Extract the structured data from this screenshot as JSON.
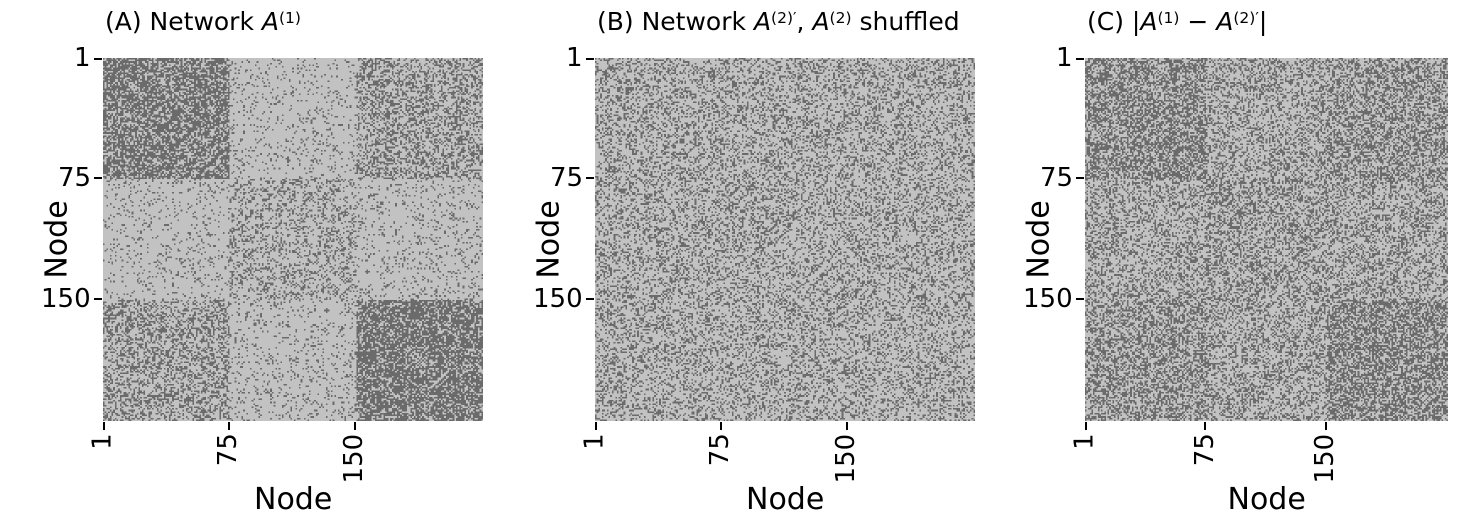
{
  "figure": {
    "background": "#ffffff",
    "text_color": "#000000",
    "description": "Three binary adjacency-matrix heatmaps rendered in gray scale"
  },
  "chart_data": [
    {
      "type": "heatmap",
      "panel": "A",
      "title": "(A) Network A^(1)",
      "title_segments": [
        {
          "t": "(A) Network ",
          "s": "n"
        },
        {
          "t": "A",
          "s": "i"
        },
        {
          "t": "(1)",
          "s": "sup"
        }
      ],
      "xlabel": "Node",
      "ylabel": "Node",
      "n_nodes": 225,
      "xticks": {
        "positions": [
          1,
          75,
          150
        ],
        "labels": [
          "1",
          "75",
          "150"
        ],
        "rotation": 90
      },
      "yticks": {
        "positions": [
          1,
          75,
          150
        ],
        "labels": [
          "1",
          "75",
          "150"
        ],
        "rotation": 0
      },
      "matrix_model": "symmetric stochastic block model, 3 communities",
      "community_sizes": [
        75,
        75,
        75
      ],
      "block_edge_density": [
        [
          0.65,
          0.1,
          0.4
        ],
        [
          0.1,
          0.27,
          0.12
        ],
        [
          0.4,
          0.12,
          0.7
        ]
      ],
      "cell_values": [
        0,
        1
      ],
      "colors": {
        "edge": "#6b6b6b",
        "no_edge": "#c2c2c2"
      }
    },
    {
      "type": "heatmap",
      "panel": "B",
      "title": "(B) Network A^(2)', A^(2) shuffled",
      "title_segments": [
        {
          "t": "(B) Network ",
          "s": "n"
        },
        {
          "t": "A",
          "s": "i"
        },
        {
          "t": "(2)′",
          "s": "sup"
        },
        {
          "t": ", ",
          "s": "n"
        },
        {
          "t": "A",
          "s": "i"
        },
        {
          "t": "(2)",
          "s": "sup"
        },
        {
          "t": " shuffled",
          "s": "n"
        }
      ],
      "xlabel": "Node",
      "ylabel": "Node",
      "n_nodes": 225,
      "xticks": {
        "positions": [
          1,
          75,
          150
        ],
        "labels": [
          "1",
          "75",
          "150"
        ],
        "rotation": 90
      },
      "yticks": {
        "positions": [
          1,
          75,
          150
        ],
        "labels": [
          "1",
          "75",
          "150"
        ],
        "rotation": 0
      },
      "matrix_model": "node-shuffled network, uniform random appearance, symmetric",
      "community_sizes": [
        225
      ],
      "block_edge_density": [
        [
          0.3
        ]
      ],
      "cell_values": [
        0,
        1
      ],
      "colors": {
        "edge": "#6b6b6b",
        "no_edge": "#c2c2c2"
      }
    },
    {
      "type": "heatmap",
      "panel": "C",
      "title": "(C) |A^(1) - A^(2)'|",
      "title_segments": [
        {
          "t": "(C) |",
          "s": "n"
        },
        {
          "t": "A",
          "s": "i"
        },
        {
          "t": "(1)",
          "s": "sup"
        },
        {
          "t": " − ",
          "s": "n"
        },
        {
          "t": "A",
          "s": "i"
        },
        {
          "t": "(2)′",
          "s": "sup"
        },
        {
          "t": "|",
          "s": "n"
        }
      ],
      "xlabel": "Node",
      "ylabel": "Node",
      "n_nodes": 225,
      "xticks": {
        "positions": [
          1,
          75,
          150
        ],
        "labels": [
          "1",
          "75",
          "150"
        ],
        "rotation": 90
      },
      "yticks": {
        "positions": [
          1,
          75,
          150
        ],
        "labels": [
          "1",
          "75",
          "150"
        ],
        "rotation": 0
      },
      "matrix_model": "absolute difference of the two matrices, symmetric, denser in diagonal community blocks",
      "community_sizes": [
        75,
        75,
        75
      ],
      "block_edge_density": [
        [
          0.56,
          0.34,
          0.46
        ],
        [
          0.34,
          0.4,
          0.35
        ],
        [
          0.46,
          0.35,
          0.58
        ]
      ],
      "cell_values": [
        0,
        1
      ],
      "colors": {
        "edge": "#6b6b6b",
        "no_edge": "#c2c2c2"
      }
    }
  ]
}
